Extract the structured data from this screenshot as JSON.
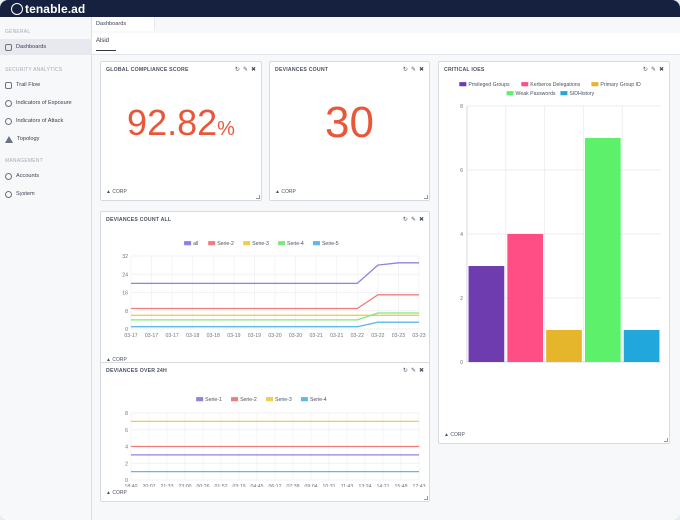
{
  "app": {
    "logo_text": "tenable.ad"
  },
  "sidebar": {
    "sections": [
      {
        "title": "GENERAL",
        "items": [
          {
            "label": "Dashboards",
            "icon": "dashboard-icon",
            "active": true
          }
        ]
      },
      {
        "title": "SECURITY ANALYTICS",
        "items": [
          {
            "label": "Trail Flow",
            "icon": "trail-flow-icon"
          },
          {
            "label": "Indicators of Exposure",
            "icon": "exposure-icon"
          },
          {
            "label": "Indicators of Attack",
            "icon": "attack-icon"
          },
          {
            "label": "Topology",
            "icon": "topology-icon"
          }
        ]
      },
      {
        "title": "MANAGEMENT",
        "items": [
          {
            "label": "Accounts",
            "icon": "accounts-icon"
          },
          {
            "label": "System",
            "icon": "gear-icon"
          }
        ]
      }
    ]
  },
  "header": {
    "tab_label": "Dashboards",
    "subtab_label": "Alsid"
  },
  "cards": {
    "compliance": {
      "title": "GLOBAL COMPLIANCE SCORE",
      "value": "92.82",
      "unit": "%",
      "footer": "CORP"
    },
    "deviances": {
      "title": "DEVIANCES COUNT",
      "value": "30",
      "footer": "CORP"
    },
    "critical": {
      "title": "CRITICAL IOES",
      "footer": "CORP"
    },
    "count_all": {
      "title": "DEVIANCES COUNT ALL",
      "footer": "CORP"
    },
    "over24": {
      "title": "DEVIANCES OVER 24H",
      "footer": "CORP"
    }
  },
  "chart_data": [
    {
      "id": "critical_ioes",
      "type": "bar",
      "categories": [
        "Privileged Groups",
        "Kerberos Delegations",
        "Primary Group ID",
        "Weak Passwords",
        "SIDHistory"
      ],
      "values": [
        3,
        4,
        1,
        7,
        1
      ],
      "colors": [
        "#6f3cb0",
        "#ff4d86",
        "#e5b52c",
        "#5cf06b",
        "#22a7dc"
      ],
      "ylim": [
        0,
        8
      ],
      "yticks": [
        0,
        2,
        4,
        6,
        8
      ],
      "legend_position": "top",
      "grid": true
    },
    {
      "id": "deviances_count_all",
      "type": "line",
      "x": [
        "03-17",
        "03-17",
        "03-17",
        "03-18",
        "03-18",
        "03-19",
        "03-19",
        "03-20",
        "03-20",
        "03-21",
        "03-21",
        "03-22",
        "03-22",
        "03-23",
        "03-23"
      ],
      "series": [
        {
          "name": "all",
          "color": "#8b83e0",
          "values": [
            20,
            20,
            20,
            20,
            20,
            20,
            20,
            20,
            20,
            20,
            20,
            20,
            28,
            29,
            29
          ]
        },
        {
          "name": "Serie-2",
          "color": "#f07c7c",
          "values": [
            9,
            9,
            9,
            9,
            9,
            9,
            9,
            9,
            9,
            9,
            9,
            9,
            15,
            15,
            15
          ]
        },
        {
          "name": "Serie-3",
          "color": "#f2cd4a",
          "values": [
            6,
            6,
            6,
            6,
            6,
            6,
            6,
            6,
            6,
            6,
            6,
            6,
            6,
            6,
            6
          ]
        },
        {
          "name": "Serie-4",
          "color": "#7ee87e",
          "values": [
            4,
            4,
            4,
            4,
            4,
            4,
            4,
            4,
            4,
            4,
            4,
            4,
            7,
            7,
            7
          ]
        },
        {
          "name": "Serie-5",
          "color": "#5fb7ea",
          "values": [
            1,
            1,
            1,
            1,
            1,
            1,
            1,
            1,
            1,
            1,
            1,
            1,
            3,
            3,
            3
          ]
        }
      ],
      "ylim": [
        0,
        32
      ],
      "yticks": [
        0,
        8,
        16,
        24,
        32
      ],
      "legend_position": "top",
      "grid": true
    },
    {
      "id": "deviances_over_24h",
      "type": "line",
      "x": [
        "18:40",
        "20:07",
        "21:33",
        "23:00",
        "00:26",
        "01:52",
        "03:19",
        "04:45",
        "06:12",
        "07:38",
        "09:04",
        "10:31",
        "11:43",
        "13:24",
        "14:21",
        "15:48",
        "17:43"
      ],
      "series": [
        {
          "name": "Serie-1",
          "color": "#8b83e0",
          "values": [
            3,
            3,
            3,
            3,
            3,
            3,
            3,
            3,
            3,
            3,
            3,
            3,
            3,
            3,
            3,
            3,
            3
          ]
        },
        {
          "name": "Serie-2",
          "color": "#f07c7c",
          "values": [
            4,
            4,
            4,
            4,
            4,
            4,
            4,
            4,
            4,
            4,
            4,
            4,
            4,
            4,
            4,
            4,
            4
          ]
        },
        {
          "name": "Serie-3",
          "color": "#f2cd4a",
          "values": [
            7,
            7,
            7,
            7,
            7,
            7,
            7,
            7,
            7,
            7,
            7,
            7,
            7,
            7,
            7,
            7,
            7
          ]
        },
        {
          "name": "Serie-4",
          "color": "#5fb7ea",
          "values": [
            1,
            1,
            1,
            1,
            1,
            1,
            1,
            1,
            1,
            1,
            1,
            1,
            1,
            1,
            1,
            1,
            1
          ]
        }
      ],
      "ylim": [
        0,
        8
      ],
      "yticks": [
        0,
        2,
        4,
        6,
        8
      ],
      "legend_position": "top",
      "grid": true
    }
  ]
}
